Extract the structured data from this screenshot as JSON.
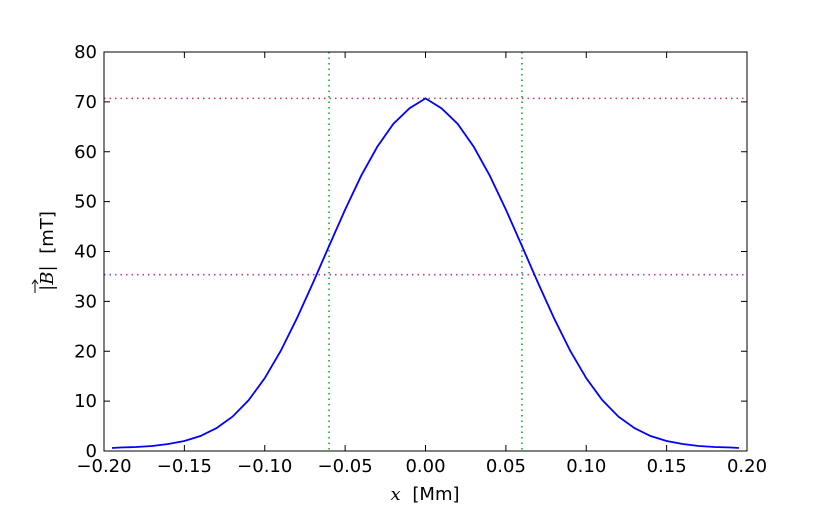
{
  "chart_data": {
    "type": "line",
    "title": "",
    "xlabel_var": "x",
    "xlabel_unit": "[Mm]",
    "ylabel_var": "|B|",
    "ylabel_unit": "[mT]",
    "xlim": [
      -0.2,
      0.2
    ],
    "ylim": [
      0,
      80
    ],
    "xticks": [
      -0.2,
      -0.15,
      -0.1,
      -0.05,
      0.0,
      0.05,
      0.1,
      0.15,
      0.2
    ],
    "xtick_labels": [
      "−0.20",
      "−0.15",
      "−0.10",
      "−0.05",
      "0.00",
      "0.05",
      "0.10",
      "0.15",
      "0.20"
    ],
    "yticks": [
      0,
      10,
      20,
      30,
      40,
      50,
      60,
      70,
      80
    ],
    "ytick_labels": [
      "0",
      "10",
      "20",
      "30",
      "40",
      "50",
      "60",
      "70",
      "80"
    ],
    "grid": false,
    "legend": "none",
    "series": [
      {
        "color": "#0000ff",
        "style": "solid",
        "x": [
          -0.195,
          -0.19,
          -0.18,
          -0.17,
          -0.16,
          -0.15,
          -0.14,
          -0.13,
          -0.12,
          -0.11,
          -0.1,
          -0.09,
          -0.08,
          -0.07,
          -0.06,
          -0.05,
          -0.04,
          -0.03,
          -0.02,
          -0.01,
          0.0,
          0.01,
          0.02,
          0.03,
          0.04,
          0.05,
          0.06,
          0.07,
          0.08,
          0.09,
          0.1,
          0.11,
          0.12,
          0.13,
          0.14,
          0.15,
          0.16,
          0.17,
          0.18,
          0.19,
          0.195
        ],
        "y": [
          0.6,
          0.7,
          0.8,
          1.0,
          1.4,
          2.0,
          3.0,
          4.6,
          6.9,
          10.2,
          14.6,
          20.1,
          26.6,
          33.7,
          41.1,
          48.4,
          55.2,
          61.0,
          65.6,
          68.7,
          70.7,
          68.7,
          65.6,
          61.0,
          55.2,
          48.4,
          41.1,
          33.7,
          26.6,
          20.1,
          14.6,
          10.2,
          6.9,
          4.6,
          3.0,
          2.0,
          1.4,
          1.0,
          0.8,
          0.7,
          0.6
        ]
      }
    ],
    "hlines": [
      {
        "y": 70.7,
        "color": "#dd3355",
        "style": "dotted"
      },
      {
        "y": 35.35,
        "color": "#cc33aa",
        "style": "dotted"
      }
    ],
    "vlines": [
      {
        "x": -0.06,
        "color": "#11aa22",
        "style": "dotted"
      },
      {
        "x": 0.06,
        "color": "#11aa22",
        "style": "dotted"
      }
    ]
  }
}
